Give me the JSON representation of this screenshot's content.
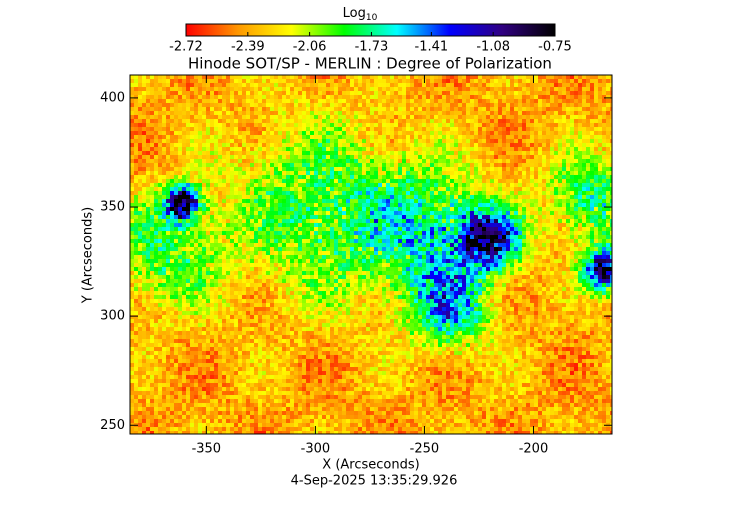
{
  "chart_data": {
    "type": "image",
    "title": "Hinode SOT/SP - MERLIN : Degree of Polarization",
    "x_label": "X (Arcseconds)",
    "y_label": "Y (Arcseconds)",
    "footer": "4-Sep-2025 13:35:29.926",
    "colorbar": {
      "title": "Log",
      "title_subscript": "10",
      "clim": [
        -2.72,
        -0.75
      ],
      "ticks": [
        -2.72,
        -2.39,
        -2.06,
        -1.73,
        -1.41,
        -1.08,
        -0.75
      ]
    },
    "colormap": [
      "#ff0000",
      "#ff9900",
      "#ffff00",
      "#00ff00",
      "#00ffff",
      "#0000ff",
      "#300080",
      "#000000"
    ],
    "xlim": [
      -385,
      -164
    ],
    "xticks": [
      -350,
      -300,
      -250,
      -200
    ],
    "ylim": [
      246,
      410.5
    ],
    "yticks": [
      250,
      300,
      350,
      400
    ]
  }
}
